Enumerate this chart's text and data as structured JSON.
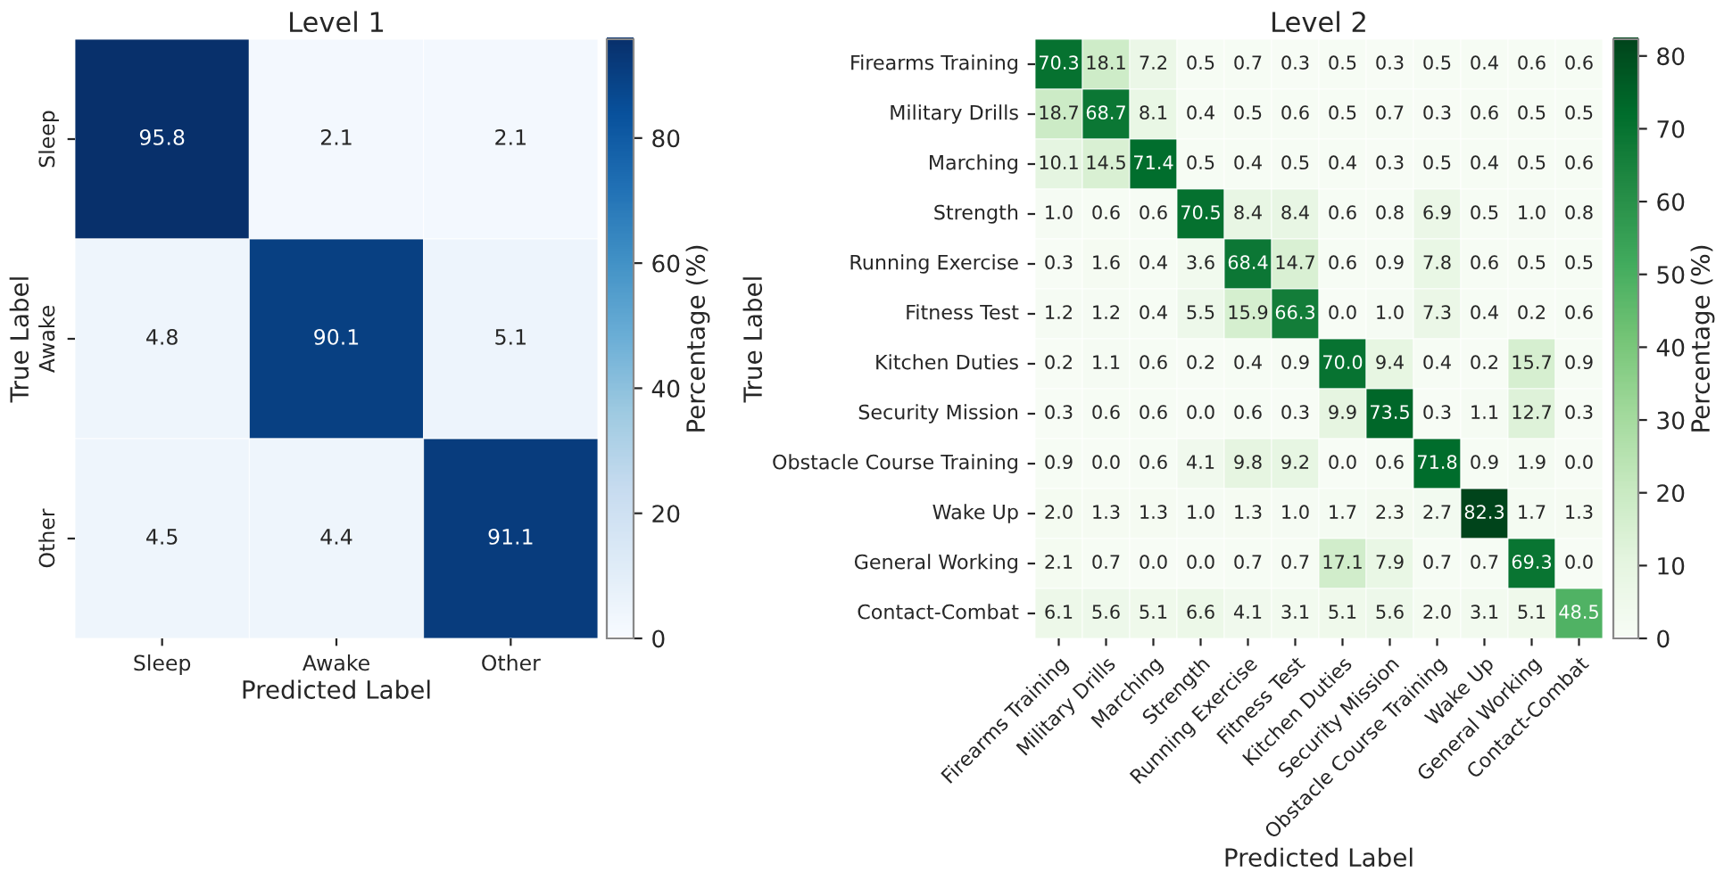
{
  "chart_data": [
    {
      "type": "heatmap",
      "title": "Level 1",
      "xlabel": "Predicted Label",
      "ylabel": "True Label",
      "clabel": "Percentage (%)",
      "categories": [
        "Sleep",
        "Awake",
        "Other"
      ],
      "y_categories": [
        "Sleep",
        "Awake",
        "Other"
      ],
      "cells": [
        [
          95.8,
          2.1,
          2.1
        ],
        [
          4.8,
          90.1,
          5.1
        ],
        [
          4.5,
          4.4,
          91.1
        ]
      ],
      "clim": [
        0,
        95.8
      ],
      "cticks": [
        0,
        20,
        40,
        60,
        80
      ],
      "data_labels": true
    },
    {
      "type": "heatmap",
      "title": "Level 2",
      "xlabel": "Predicted Label",
      "ylabel": "True Label",
      "clabel": "Percentage (%)",
      "categories": [
        "Firearms Training",
        "Military Drills",
        "Marching",
        "Strength",
        "Running Exercise",
        "Fitness Test",
        "Kitchen Duties",
        "Security Mission",
        "Obstacle Course Training",
        "Wake Up",
        "General Working",
        "Contact-Combat"
      ],
      "y_categories": [
        "Firearms Training",
        "Military Drills",
        "Marching",
        "Strength",
        "Running Exercise",
        "Fitness Test",
        "Kitchen Duties",
        "Security Mission",
        "Obstacle Course Training",
        "Wake Up",
        "General Working",
        "Contact-Combat"
      ],
      "cells": [
        [
          70.3,
          18.1,
          7.2,
          0.5,
          0.7,
          0.3,
          0.5,
          0.3,
          0.5,
          0.4,
          0.6,
          0.6
        ],
        [
          18.7,
          68.7,
          8.1,
          0.4,
          0.5,
          0.6,
          0.5,
          0.7,
          0.3,
          0.6,
          0.5,
          0.5
        ],
        [
          10.1,
          14.5,
          71.4,
          0.5,
          0.4,
          0.5,
          0.4,
          0.3,
          0.5,
          0.4,
          0.5,
          0.6
        ],
        [
          1.0,
          0.6,
          0.6,
          70.5,
          8.4,
          8.4,
          0.6,
          0.8,
          6.9,
          0.5,
          1.0,
          0.8
        ],
        [
          0.3,
          1.6,
          0.4,
          3.6,
          68.4,
          14.7,
          0.6,
          0.9,
          7.8,
          0.6,
          0.5,
          0.5
        ],
        [
          1.2,
          1.2,
          0.4,
          5.5,
          15.9,
          66.3,
          0.0,
          1.0,
          7.3,
          0.4,
          0.2,
          0.6
        ],
        [
          0.2,
          1.1,
          0.6,
          0.2,
          0.4,
          0.9,
          70.0,
          9.4,
          0.4,
          0.2,
          15.7,
          0.9
        ],
        [
          0.3,
          0.6,
          0.6,
          0.0,
          0.6,
          0.3,
          9.9,
          73.5,
          0.3,
          1.1,
          12.7,
          0.3
        ],
        [
          0.9,
          0.0,
          0.6,
          4.1,
          9.8,
          9.2,
          0.0,
          0.6,
          71.8,
          0.9,
          1.9,
          0.0
        ],
        [
          2.0,
          1.3,
          1.3,
          1.0,
          1.3,
          1.0,
          1.7,
          2.3,
          2.7,
          82.3,
          1.7,
          1.3
        ],
        [
          2.1,
          0.7,
          0.0,
          0.0,
          0.7,
          0.7,
          17.1,
          7.9,
          0.7,
          0.7,
          69.3,
          0.0
        ],
        [
          6.1,
          5.6,
          5.1,
          6.6,
          4.1,
          3.1,
          5.1,
          5.6,
          2.0,
          3.1,
          5.1,
          48.5
        ]
      ],
      "cell_labels": [
        [
          "70.3",
          "18.1",
          "7.2",
          "0.5",
          "0.7",
          "0.3",
          "0.5",
          "0.3",
          "0.5",
          "0.4",
          "0.6",
          "0.6"
        ],
        [
          "18.7",
          "68.7",
          "8.1",
          "0.4",
          "0.5",
          "0.6",
          "0.5",
          "0.7",
          "0.3",
          "0.6",
          "0.5",
          "0.5"
        ],
        [
          "10.1",
          "14.5",
          "71.4",
          "0.5",
          "0.4",
          "0.5",
          "0.4",
          "0.3",
          "0.5",
          "0.4",
          "0.5",
          "0.6"
        ],
        [
          "1.0",
          "0.6",
          "0.6",
          "70.5",
          "8.4",
          "8.4",
          "0.6",
          "0.8",
          "6.9",
          "0.5",
          "1.0",
          "0.8"
        ],
        [
          "0.3",
          "1.6",
          "0.4",
          "3.6",
          "68.4",
          "14.7",
          "0.6",
          "0.9",
          "7.8",
          "0.6",
          "0.5",
          "0.5"
        ],
        [
          "1.2",
          "1.2",
          "0.4",
          "5.5",
          "15.9",
          "66.3",
          "0.0",
          "1.0",
          "7.3",
          "0.4",
          "0.2",
          "0.6"
        ],
        [
          "0.2",
          "1.1",
          "0.6",
          "0.2",
          "0.4",
          "0.9",
          "70.0",
          "9.4",
          "0.4",
          "0.2",
          "15.7",
          "0.9"
        ],
        [
          "0.3",
          "0.6",
          "0.6",
          "0.0",
          "0.6",
          "0.3",
          "9.9",
          "73.5",
          "0.3",
          "1.1",
          "12.7",
          "0.3"
        ],
        [
          "0.9",
          "0.0",
          "0.6",
          "4.1",
          "9.8",
          "9.2",
          "0.0",
          "0.6",
          "71.8",
          "0.9",
          "1.9",
          "0.0"
        ],
        [
          "2.0",
          "1.3",
          "1.3",
          "1.0",
          "1.3",
          "1.0",
          "1.7",
          "2.3",
          "2.7",
          "82.3",
          "1.7",
          "1.3"
        ],
        [
          "2.1",
          "0.7",
          "0.0",
          "0.0",
          "0.7",
          "0.7",
          "17.1",
          "7.9",
          "0.7",
          "0.7",
          "69.3",
          "0.0"
        ],
        [
          "6.1",
          "5.6",
          "5.1",
          "6.6",
          "4.1",
          "3.1",
          "5.1",
          "5.6",
          "2.0",
          "3.1",
          "5.1",
          "48.5"
        ]
      ],
      "clim": [
        0,
        82.3
      ],
      "cticks": [
        0,
        10,
        20,
        30,
        40,
        50,
        60,
        70,
        80
      ],
      "data_labels": true
    }
  ]
}
